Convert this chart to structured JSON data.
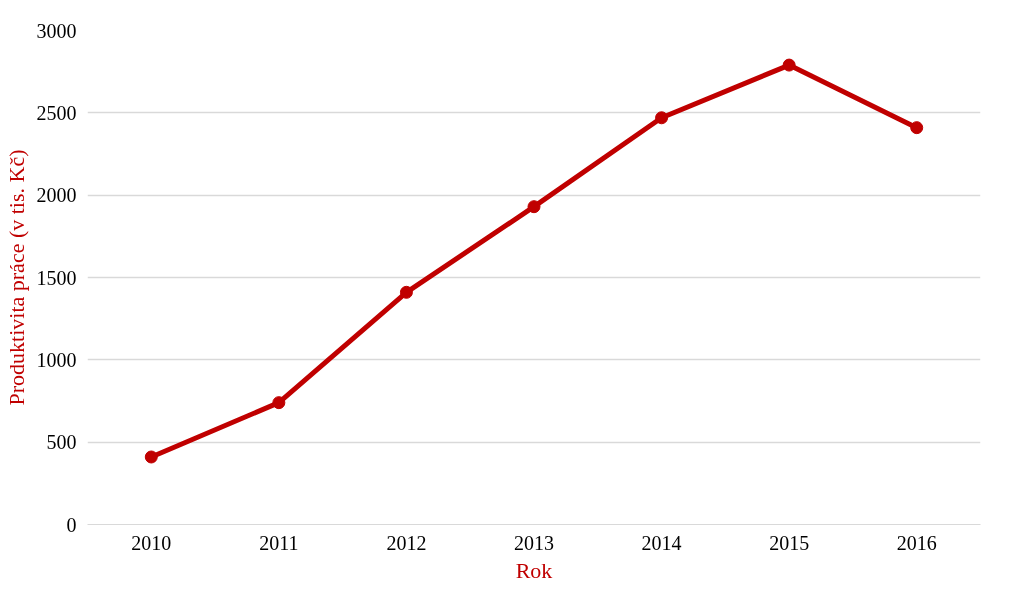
{
  "chart_data": {
    "type": "line",
    "xlabel": "Rok",
    "ylabel": "Produktivita práce (v tis. Kč)",
    "categories": [
      "2010",
      "2011",
      "2012",
      "2013",
      "2014",
      "2015",
      "2016"
    ],
    "series": [
      {
        "color": "#c00000",
        "values": [
          410,
          740,
          1410,
          1930,
          2470,
          2790,
          2410
        ]
      }
    ],
    "ylim": [
      0,
      3000
    ],
    "yticks": [
      0,
      500,
      1000,
      1500,
      2000,
      2500,
      3000
    ],
    "grid": "y",
    "marker": "circle",
    "line_style": "solid"
  }
}
